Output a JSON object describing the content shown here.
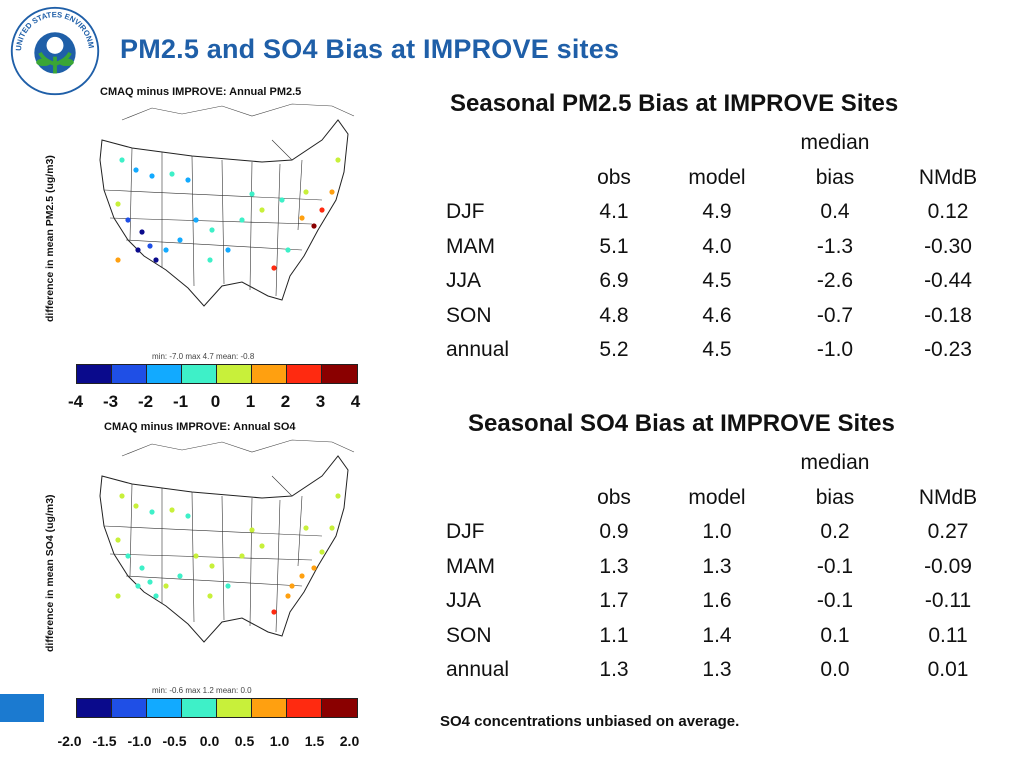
{
  "slide": {
    "title": "PM2.5 and SO4 Bias at IMPROVE sites",
    "logo_text": "UNITED STATES ENVIRONMENTAL PROTECTION AGENCY",
    "footnote": "SO4 concentrations unbiased on  average."
  },
  "map_pm25": {
    "title": "CMAQ minus IMPROVE: Annual PM2.5",
    "ylabel": "difference in mean PM2.5 (ug/m3)",
    "stats": "min: -7.0  max  4.7 mean: -0.8",
    "colorbar_ticks": [
      "-4",
      "-3",
      "-2",
      "-1",
      "0",
      "1",
      "2",
      "3",
      "4"
    ]
  },
  "map_so4": {
    "title": "CMAQ minus IMPROVE: Annual SO4",
    "ylabel": "difference in mean SO4 (ug/m3)",
    "stats": "min: -0.6  max  1.2 mean:  0.0",
    "colorbar_ticks": [
      "-2.0",
      "-1.5",
      "-1.0",
      "-0.5",
      "0.0",
      "0.5",
      "1.0",
      "1.5",
      "2.0"
    ]
  },
  "colorbar_colors": [
    "#0a0a8c",
    "#1f4fe6",
    "#12aaff",
    "#3ef0c8",
    "#c8f03a",
    "#ffa010",
    "#ff2a10",
    "#8a0000"
  ],
  "table_pm25": {
    "title": "Seasonal PM2.5 Bias at IMPROVE Sites",
    "header_top": [
      "",
      "",
      "",
      "median",
      ""
    ],
    "header": [
      "",
      "obs",
      "model",
      "bias",
      "NMdB"
    ],
    "rows": [
      [
        "DJF",
        "4.1",
        "4.9",
        "0.4",
        "0.12"
      ],
      [
        "MAM",
        "5.1",
        "4.0",
        "-1.3",
        "-0.30"
      ],
      [
        "JJA",
        "6.9",
        "4.5",
        "-2.6",
        "-0.44"
      ],
      [
        "SON",
        "4.8",
        "4.6",
        "-0.7",
        "-0.18"
      ],
      [
        "annual",
        "5.2",
        "4.5",
        "-1.0",
        "-0.23"
      ]
    ]
  },
  "table_so4": {
    "title": "Seasonal SO4 Bias at IMPROVE Sites",
    "header_top": [
      "",
      "",
      "",
      "median",
      ""
    ],
    "header": [
      "",
      "obs",
      "model",
      "bias",
      "NMdB"
    ],
    "rows": [
      [
        "DJF",
        "0.9",
        "1.0",
        "0.2",
        "0.27"
      ],
      [
        "MAM",
        "1.3",
        "1.3",
        "-0.1",
        "-0.09"
      ],
      [
        "JJA",
        "1.7",
        "1.6",
        "-0.1",
        "-0.11"
      ],
      [
        "SON",
        "1.1",
        "1.4",
        "0.1",
        "0.11"
      ],
      [
        "annual",
        "1.3",
        "1.3",
        "0.0",
        "0.01"
      ]
    ]
  }
}
